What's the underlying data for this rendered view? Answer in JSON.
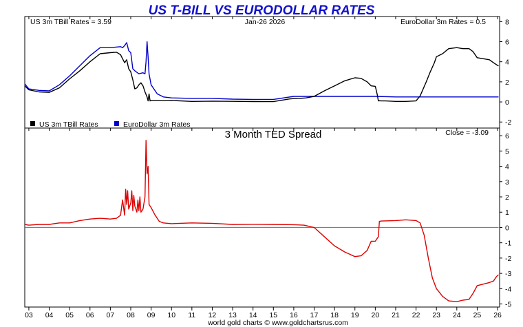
{
  "title": "US T-BILL VS EURODOLLAR RATES",
  "footer": "world gold charts © www.goldchartsrus.com",
  "colors": {
    "title": "#1111cc",
    "tbill": "#000000",
    "eurodollar": "#0000cc",
    "spread": "#dd0000",
    "zero_line": "#cc3399",
    "axis": "#000000",
    "grid": "#aaaaaa"
  },
  "x_axis": {
    "ticks": [
      "03",
      "04",
      "05",
      "06",
      "07",
      "08",
      "09",
      "10",
      "11",
      "12",
      "13",
      "14",
      "15",
      "16",
      "17",
      "18",
      "19",
      "20",
      "21",
      "22",
      "23",
      "24",
      "25",
      "26"
    ],
    "range": [
      2002.8,
      2026.1
    ]
  },
  "top_panel": {
    "header_left": "US 3m TBill Rates = 3.59",
    "header_center": "Jan-26  2026",
    "header_right": "EuroDollar 3m Rates = 0.5",
    "legend": [
      {
        "label": "US 3m TBill Rates",
        "color": "#000000"
      },
      {
        "label": "EuroDollar 3m Rates",
        "color": "#0000cc"
      }
    ],
    "y_ticks": [
      "8",
      "6",
      "4",
      "2",
      "0",
      "-2"
    ],
    "ylim": [
      -2.6,
      8.5
    ]
  },
  "bottom_panel": {
    "title": "3 Month TED Spread",
    "close_label": "Close = -3.09",
    "y_ticks": [
      "6",
      "5",
      "4",
      "3",
      "2",
      "1",
      "0",
      "-1",
      "-2",
      "-3",
      "-4",
      "-5"
    ],
    "ylim": [
      -5.2,
      6.5
    ]
  },
  "chart_data": [
    {
      "type": "line",
      "title": "US T-BILL VS EURODOLLAR RATES",
      "xlabel": "",
      "ylabel": "",
      "ylim": [
        -2.6,
        8.5
      ],
      "series": [
        {
          "name": "US 3m TBill Rates",
          "color": "#000000",
          "x": [
            2002.8,
            2003.0,
            2003.5,
            2004.0,
            2004.5,
            2005.0,
            2005.5,
            2006.0,
            2006.5,
            2007.0,
            2007.3,
            2007.5,
            2007.6,
            2007.7,
            2007.8,
            2007.9,
            2008.0,
            2008.1,
            2008.2,
            2008.3,
            2008.4,
            2008.5,
            2008.6,
            2008.7,
            2008.8,
            2008.85,
            2008.9,
            2008.95,
            2009.0,
            2009.3,
            2009.6,
            2010.0,
            2011.0,
            2012.0,
            2013.0,
            2014.0,
            2015.0,
            2015.8,
            2016.0,
            2016.3,
            2016.6,
            2017.0,
            2017.5,
            2018.0,
            2018.5,
            2019.0,
            2019.3,
            2019.6,
            2019.8,
            2020.0,
            2020.1,
            2020.15,
            2020.2,
            2020.3,
            2020.5,
            2021.0,
            2021.5,
            2022.0,
            2022.2,
            2022.5,
            2022.7,
            2022.9,
            2023.0,
            2023.3,
            2023.6,
            2024.0,
            2024.3,
            2024.6,
            2024.8,
            2025.0,
            2025.3,
            2025.6,
            2025.8,
            2025.95,
            2026.05
          ],
          "y": [
            1.6,
            1.2,
            1.0,
            0.95,
            1.4,
            2.3,
            3.1,
            4.0,
            4.8,
            4.9,
            4.95,
            4.7,
            4.3,
            3.9,
            4.2,
            3.3,
            3.0,
            2.2,
            1.3,
            1.4,
            1.7,
            1.9,
            1.6,
            1.0,
            0.5,
            0.1,
            0.8,
            0.1,
            0.15,
            0.15,
            0.12,
            0.15,
            0.05,
            0.08,
            0.06,
            0.04,
            0.03,
            0.3,
            0.33,
            0.35,
            0.4,
            0.55,
            1.1,
            1.6,
            2.1,
            2.4,
            2.35,
            2.0,
            1.6,
            1.55,
            0.7,
            0.1,
            0.12,
            0.1,
            0.1,
            0.05,
            0.05,
            0.1,
            0.6,
            2.0,
            3.0,
            3.9,
            4.5,
            4.8,
            5.3,
            5.4,
            5.3,
            5.3,
            5.0,
            4.4,
            4.3,
            4.2,
            3.9,
            3.7,
            3.59
          ]
        },
        {
          "name": "EuroDollar 3m Rates",
          "color": "#0000cc",
          "x": [
            2002.8,
            2003.0,
            2003.5,
            2004.0,
            2004.5,
            2005.0,
            2005.5,
            2006.0,
            2006.5,
            2007.0,
            2007.5,
            2007.6,
            2007.7,
            2007.8,
            2007.9,
            2008.0,
            2008.1,
            2008.2,
            2008.4,
            2008.6,
            2008.7,
            2008.75,
            2008.8,
            2008.85,
            2008.9,
            2009.0,
            2009.3,
            2009.6,
            2010.0,
            2011.0,
            2012.0,
            2013.0,
            2014.0,
            2015.0,
            2016.0,
            2017.0,
            2018.0,
            2019.0,
            2020.0,
            2021.0,
            2022.0,
            2023.0,
            2024.0,
            2025.0,
            2026.05
          ],
          "y": [
            1.8,
            1.3,
            1.15,
            1.1,
            1.7,
            2.6,
            3.6,
            4.6,
            5.4,
            5.4,
            5.5,
            5.4,
            5.6,
            5.9,
            5.1,
            4.9,
            3.3,
            3.1,
            2.8,
            2.9,
            2.8,
            4.0,
            6.0,
            4.5,
            2.8,
            1.7,
            0.8,
            0.5,
            0.4,
            0.35,
            0.35,
            0.28,
            0.25,
            0.25,
            0.55,
            0.55,
            0.55,
            0.55,
            0.55,
            0.5,
            0.5,
            0.5,
            0.5,
            0.5,
            0.5
          ]
        }
      ]
    },
    {
      "type": "line",
      "title": "3 Month TED Spread",
      "xlabel": "",
      "ylabel": "",
      "ylim": [
        -5.2,
        6.5
      ],
      "series": [
        {
          "name": "3 Month TED Spread",
          "color": "#dd0000",
          "x": [
            2002.8,
            2003.0,
            2003.5,
            2004.0,
            2004.5,
            2005.0,
            2005.5,
            2006.0,
            2006.5,
            2007.0,
            2007.3,
            2007.5,
            2007.6,
            2007.7,
            2007.75,
            2007.8,
            2007.85,
            2007.9,
            2008.0,
            2008.05,
            2008.1,
            2008.15,
            2008.2,
            2008.3,
            2008.35,
            2008.4,
            2008.45,
            2008.5,
            2008.6,
            2008.7,
            2008.75,
            2008.8,
            2008.85,
            2008.9,
            2009.0,
            2009.2,
            2009.4,
            2009.6,
            2010.0,
            2011.0,
            2012.0,
            2013.0,
            2014.0,
            2015.0,
            2016.0,
            2016.5,
            2017.0,
            2017.5,
            2018.0,
            2018.5,
            2019.0,
            2019.3,
            2019.6,
            2019.8,
            2020.0,
            2020.15,
            2020.2,
            2020.3,
            2021.0,
            2021.5,
            2022.0,
            2022.2,
            2022.4,
            2022.6,
            2022.8,
            2023.0,
            2023.3,
            2023.6,
            2024.0,
            2024.3,
            2024.6,
            2024.8,
            2025.0,
            2025.3,
            2025.6,
            2025.8,
            2025.95,
            2026.05
          ],
          "y": [
            0.2,
            0.15,
            0.2,
            0.2,
            0.3,
            0.3,
            0.45,
            0.55,
            0.6,
            0.55,
            0.6,
            0.8,
            1.8,
            0.8,
            2.5,
            1.5,
            2.4,
            1.2,
            1.6,
            2.4,
            1.1,
            2.1,
            1.4,
            1.0,
            1.8,
            1.1,
            2.0,
            1.0,
            1.2,
            2.0,
            5.7,
            3.5,
            4.0,
            1.5,
            1.3,
            0.8,
            0.4,
            0.3,
            0.25,
            0.3,
            0.27,
            0.2,
            0.21,
            0.2,
            0.18,
            0.15,
            0.0,
            -0.6,
            -1.2,
            -1.6,
            -1.9,
            -1.85,
            -1.5,
            -0.9,
            -0.9,
            -0.6,
            0.4,
            0.42,
            0.45,
            0.5,
            0.45,
            0.3,
            -0.5,
            -2.0,
            -3.3,
            -4.0,
            -4.5,
            -4.8,
            -4.85,
            -4.75,
            -4.7,
            -4.3,
            -3.8,
            -3.7,
            -3.6,
            -3.5,
            -3.2,
            -3.09
          ]
        },
        {
          "name": "zero line",
          "color": "#cc3399",
          "x": [
            2002.8,
            2026.05
          ],
          "y": [
            0,
            0
          ]
        }
      ]
    }
  ]
}
